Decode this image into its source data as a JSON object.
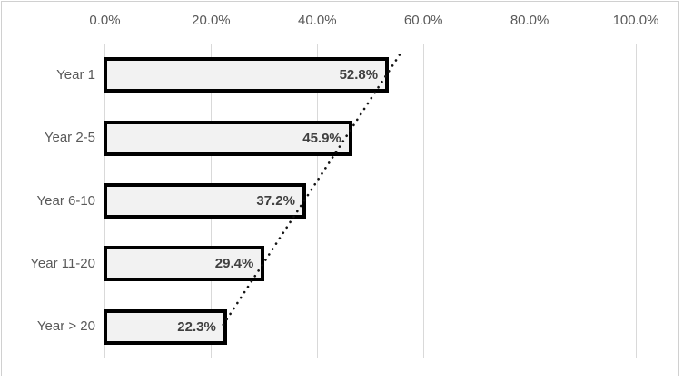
{
  "chart_data": {
    "type": "bar",
    "orientation": "horizontal",
    "title": "",
    "xlabel": "",
    "ylabel": "",
    "categories": [
      "Year 1",
      "Year 2-5",
      "Year 6-10",
      "Year 11-20",
      "Year > 20"
    ],
    "values": [
      52.8,
      45.9,
      37.2,
      29.4,
      22.3
    ],
    "value_labels": [
      "52.8%",
      "45.9%",
      "37.2%",
      "29.4%",
      "22.3%"
    ],
    "x_axis": {
      "position": "top",
      "range": [
        0,
        100
      ],
      "tick_values": [
        0,
        20,
        40,
        60,
        80,
        100
      ],
      "tick_labels": [
        "0.0%",
        "20.0%",
        "40.0%",
        "60.0%",
        "80.0%",
        "100.0%"
      ]
    },
    "grid": "vertical",
    "legend": false,
    "trendline": {
      "type": "linear",
      "style": "dotted",
      "color": "#141414"
    },
    "colors": {
      "bar_fill": "#f2f2f2",
      "bar_border": "#000000",
      "gridline": "#d9d9d9",
      "axis_text": "#595959",
      "value_text": "#404040",
      "frame_border": "#d0d0d0",
      "background": "#ffffff"
    }
  }
}
